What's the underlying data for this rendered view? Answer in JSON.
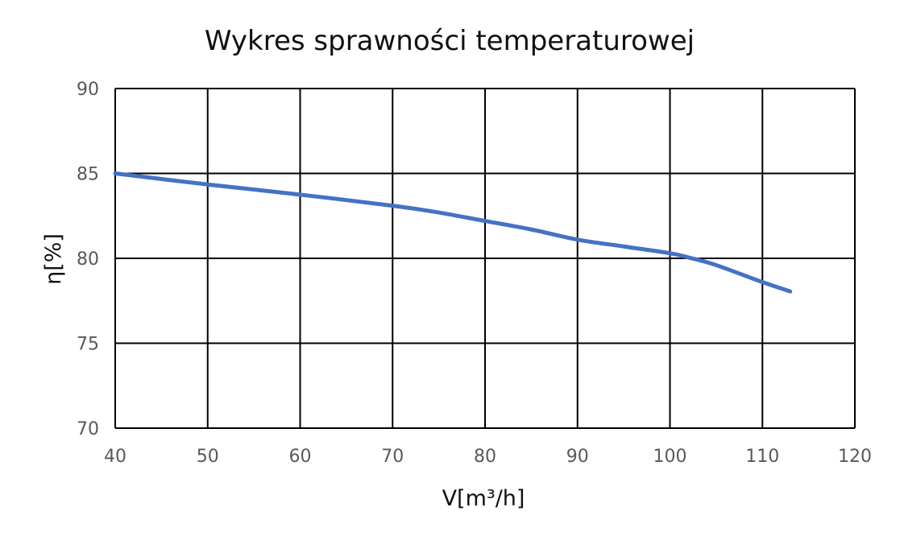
{
  "chart_data": {
    "type": "line",
    "title": "Wykres sprawności temperaturowej",
    "xlabel": "V[m³/h]",
    "ylabel": "η[%]",
    "xlim": [
      40,
      120
    ],
    "ylim": [
      70,
      90
    ],
    "x_ticks": [
      "40",
      "50",
      "60",
      "70",
      "80",
      "90",
      "100",
      "110",
      "120"
    ],
    "y_ticks": [
      "70",
      "75",
      "80",
      "85",
      "90"
    ],
    "grid": true,
    "legend": "none",
    "series": [
      {
        "color": "#4472c4",
        "x": [
          40,
          50,
          60,
          70,
          75,
          80,
          85,
          90,
          95,
          100,
          102,
          105,
          110,
          113
        ],
        "y": [
          85.0,
          84.35,
          83.75,
          83.1,
          82.7,
          82.2,
          81.7,
          81.1,
          80.7,
          80.3,
          80.05,
          79.6,
          78.6,
          78.05
        ]
      }
    ]
  }
}
